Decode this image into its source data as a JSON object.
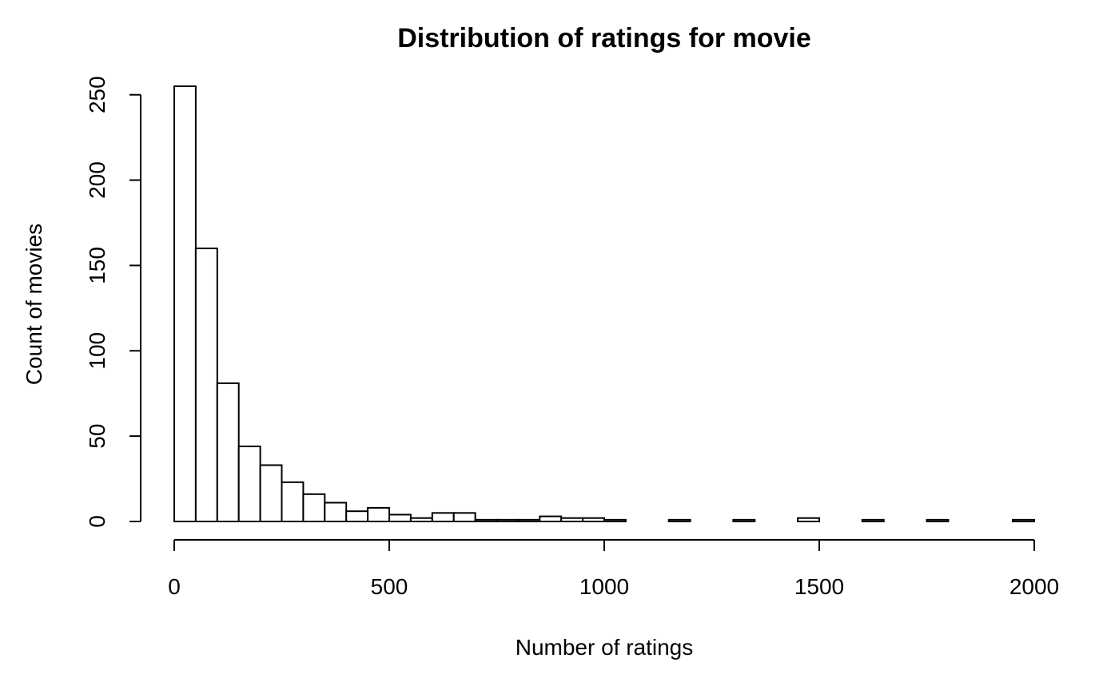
{
  "chart_data": {
    "type": "bar",
    "title": "Distribution of ratings for movie",
    "xlabel": "Number of ratings",
    "ylabel": "Count of movies",
    "bin_width": 50,
    "bin_start": 0,
    "counts": [
      255,
      160,
      81,
      44,
      33,
      23,
      16,
      11,
      6,
      8,
      4,
      2,
      5,
      5,
      1,
      1,
      1,
      3,
      2,
      2,
      1,
      0,
      0,
      1,
      0,
      0,
      1,
      0,
      0,
      2,
      0,
      0,
      1,
      0,
      0,
      1,
      0,
      0,
      0,
      1
    ],
    "xlim": [
      0,
      2000
    ],
    "ylim": [
      0,
      255
    ],
    "x_ticks": [
      0,
      500,
      1000,
      1500,
      2000
    ],
    "y_ticks": [
      0,
      50,
      100,
      150,
      200,
      250
    ],
    "grid": false
  },
  "colors": {
    "bar_fill": "#ffffff",
    "bar_stroke": "#000000",
    "background": "#ffffff"
  }
}
